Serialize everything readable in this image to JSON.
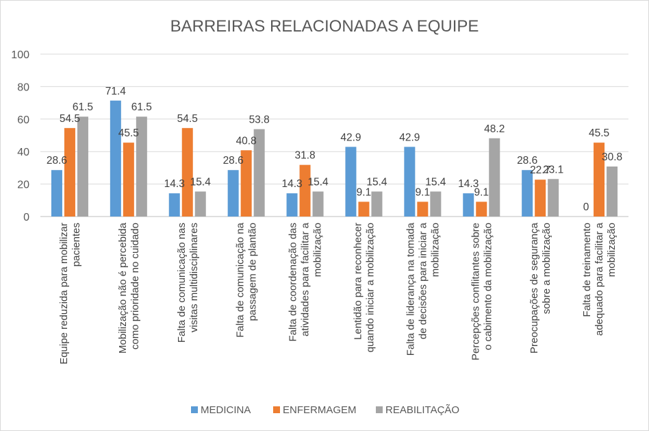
{
  "chart_data": {
    "type": "bar",
    "title": "BARREIRAS RELACIONADAS A EQUIPE",
    "xlabel": "",
    "ylabel": "",
    "ylim": [
      0,
      100
    ],
    "yticks": [
      0,
      20,
      40,
      60,
      80,
      100
    ],
    "grid": true,
    "legend_position": "bottom",
    "categories": [
      [
        "Equipe reduzida para mobilizar",
        "pacientes"
      ],
      [
        "Mobilização não é percebida",
        "como prioridade no cuidado"
      ],
      [
        "Falta de comunicação nas",
        "visitas multidisciplinares"
      ],
      [
        "Falta de comunicação na",
        "passagem de plantão"
      ],
      [
        "Falta de coordenação das",
        "atividades para facilitar a",
        "mobilização"
      ],
      [
        "Lentidão para reconhecer",
        "quando iniciar a mobilização"
      ],
      [
        "Falta de liderança na tomada",
        "de decisões para iniciar a",
        "mobilização"
      ],
      [
        "Percepções conflitantes sobre",
        "o cabimento da mobilização"
      ],
      [
        "Preocupações de segurança",
        "sobre a mobilização"
      ],
      [
        "Falta de treinamento",
        "adequado para facilitar a",
        "mobilização"
      ]
    ],
    "series": [
      {
        "name": "MEDICINA",
        "color": "#5b9bd5",
        "values": [
          28.6,
          71.4,
          14.3,
          28.6,
          14.3,
          42.9,
          42.9,
          14.3,
          28.6,
          0
        ],
        "labels": [
          "28.6",
          "71.4",
          "14.3",
          "28.6",
          "14.3",
          "42.9",
          "42.9",
          "14.3",
          "28.6",
          "0"
        ]
      },
      {
        "name": "ENFERMAGEM",
        "color": "#ed7d31",
        "values": [
          54.5,
          45.5,
          54.5,
          40.8,
          31.8,
          9.1,
          9.1,
          9.1,
          22.7,
          45.5
        ],
        "labels": [
          "54.5",
          "45.5",
          "54.5",
          "40.8",
          "31.8",
          "9.1",
          "9.1",
          "9.1",
          "22.7",
          "45.5"
        ]
      },
      {
        "name": "REABILITAÇÃO",
        "color": "#a5a5a5",
        "values": [
          61.5,
          61.5,
          15.4,
          53.8,
          15.4,
          15.4,
          15.4,
          48.2,
          23.1,
          30.8
        ],
        "labels": [
          "61.5",
          "61.5",
          "15.4",
          "53.8",
          "15.4",
          "15.4",
          "15.4",
          "48.2",
          "23.1",
          "30.8"
        ]
      }
    ]
  }
}
